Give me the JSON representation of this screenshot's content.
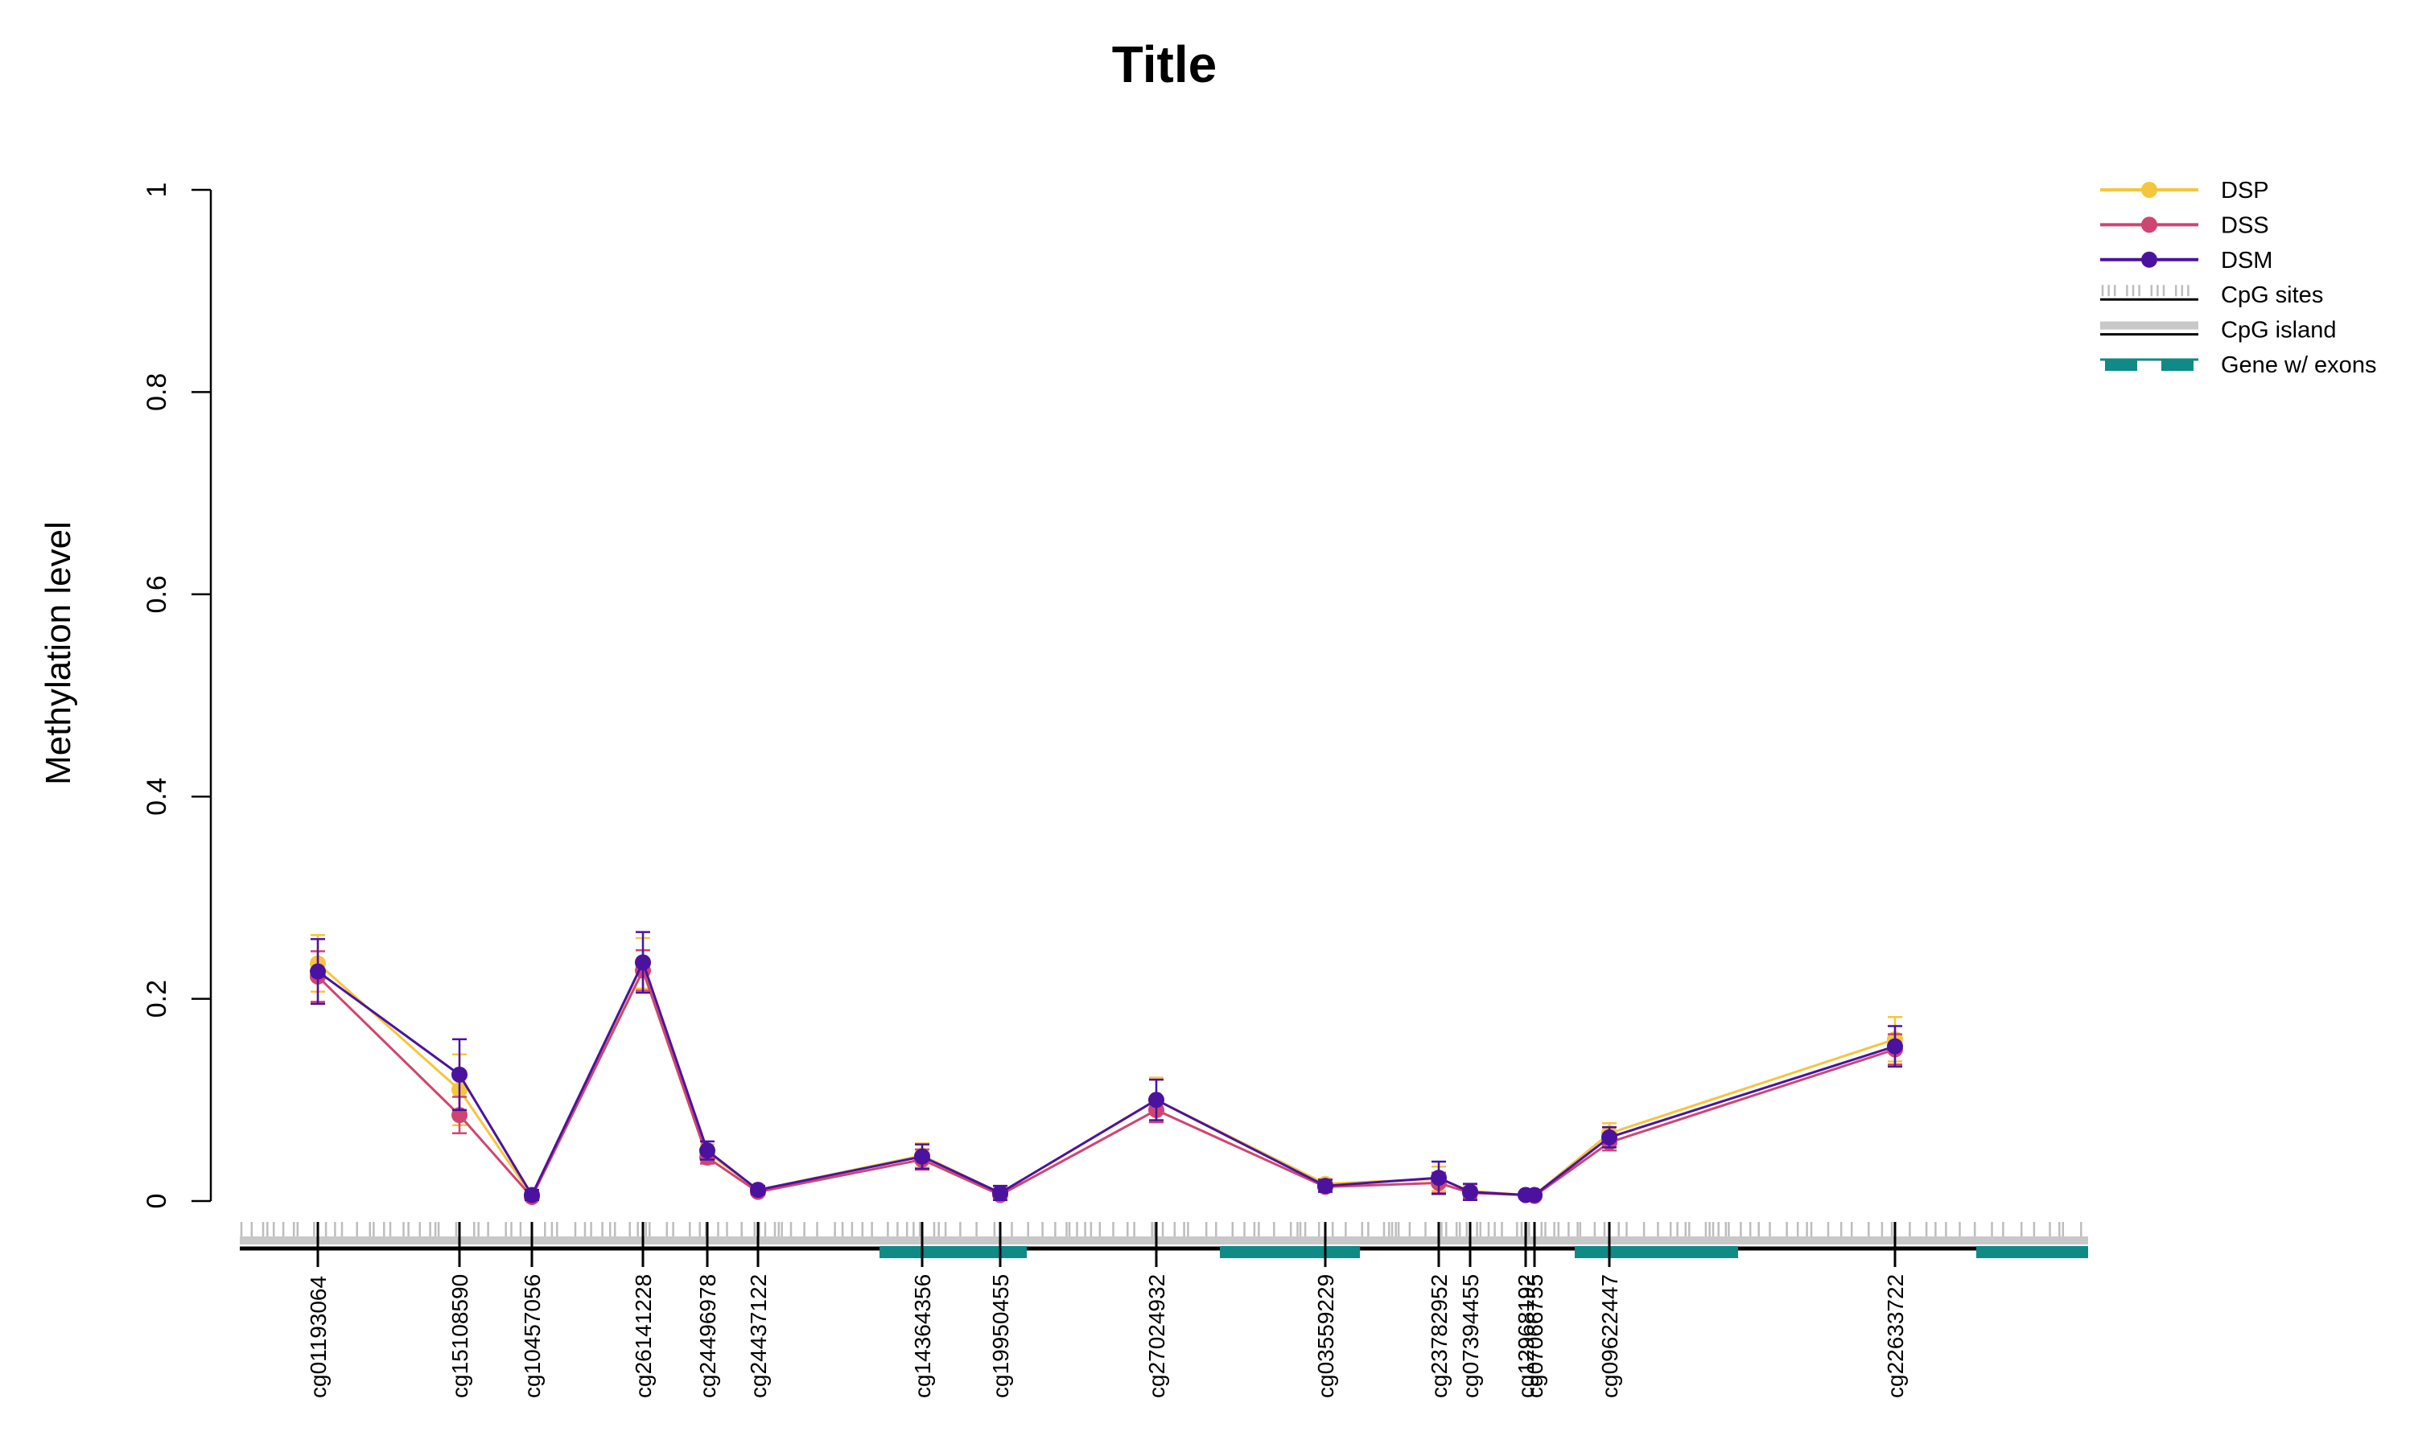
{
  "chart_data": {
    "type": "line",
    "title": "Title",
    "xlabel": "",
    "ylabel": "Methylation level",
    "ylim": [
      0,
      1
    ],
    "yticks": [
      0,
      0.2,
      0.4,
      0.6,
      0.8,
      1
    ],
    "ytick_labels": [
      "0",
      "0.2",
      "0.4",
      "0.6",
      "0.8",
      "1"
    ],
    "grid": false,
    "legend_position": "top-right",
    "probes": [
      "cg01193064",
      "cg15108590",
      "cg10457056",
      "cg26141228",
      "cg24496978",
      "cg24437122",
      "cg14364356",
      "cg19950455",
      "cg27024932",
      "cg03559229",
      "cg23782952",
      "cg07394455",
      "cg12968192",
      "cg07066755",
      "cg09622447",
      "cg22633722"
    ],
    "series": [
      {
        "name": "DSP",
        "color": "#F5C63C",
        "values": [
          0.235,
          0.11,
          0.005,
          0.235,
          0.048,
          0.011,
          0.045,
          0.008,
          0.1,
          0.017,
          0.022,
          0.01,
          0.006,
          0.006,
          0.067,
          0.16
        ],
        "errors": [
          0.028,
          0.035,
          0.004,
          0.025,
          0.008,
          0.004,
          0.012,
          0.006,
          0.022,
          0.005,
          0.012,
          0.006,
          0.002,
          0.002,
          0.01,
          0.022
        ]
      },
      {
        "name": "DSS",
        "color": "#CE4670",
        "values": [
          0.222,
          0.085,
          0.004,
          0.228,
          0.043,
          0.009,
          0.041,
          0.006,
          0.09,
          0.014,
          0.018,
          0.008,
          0.006,
          0.005,
          0.058,
          0.15
        ],
        "errors": [
          0.025,
          0.018,
          0.003,
          0.02,
          0.006,
          0.003,
          0.01,
          0.004,
          0.012,
          0.004,
          0.01,
          0.005,
          0.002,
          0.002,
          0.008,
          0.015
        ]
      },
      {
        "name": "DSM",
        "color": "#4B12A0",
        "values": [
          0.227,
          0.125,
          0.006,
          0.236,
          0.05,
          0.011,
          0.044,
          0.008,
          0.1,
          0.015,
          0.023,
          0.009,
          0.006,
          0.006,
          0.063,
          0.153
        ],
        "errors": [
          0.032,
          0.035,
          0.005,
          0.03,
          0.009,
          0.004,
          0.012,
          0.007,
          0.02,
          0.006,
          0.016,
          0.008,
          0.002,
          0.002,
          0.01,
          0.02
        ]
      }
    ],
    "tracks": {
      "cpg_sites_color": "#BDBDBD",
      "cpg_island_color": "#C8C8C8",
      "gene_color": "#0F8A87",
      "baseline_color": "#000000"
    },
    "legend": [
      {
        "label": "DSP",
        "kind": "series",
        "color": "#F5C63C"
      },
      {
        "label": "DSS",
        "kind": "series",
        "color": "#CE4670"
      },
      {
        "label": "DSM",
        "kind": "series",
        "color": "#4B12A0"
      },
      {
        "label": "CpG sites",
        "kind": "cpg-sites"
      },
      {
        "label": "CpG island",
        "kind": "cpg-island"
      },
      {
        "label": "Gene w/ exons",
        "kind": "gene"
      }
    ]
  }
}
